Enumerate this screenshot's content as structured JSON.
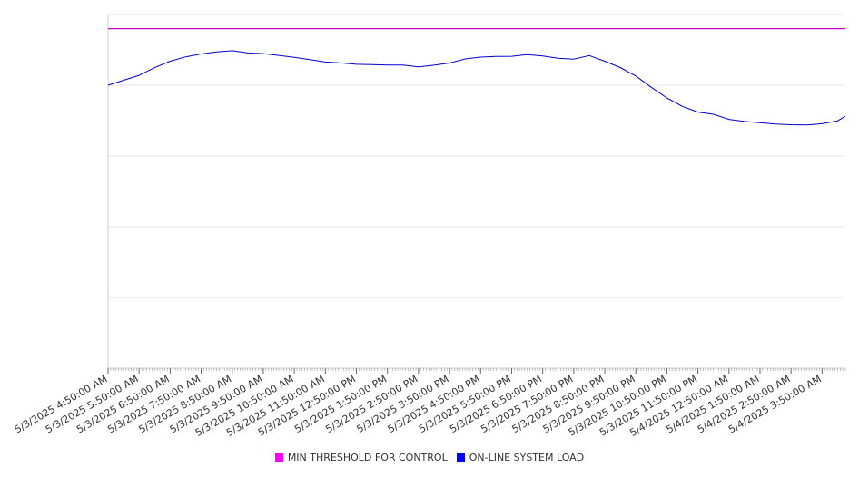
{
  "chart_data": {
    "type": "line",
    "title": "",
    "xlabel": "",
    "ylabel": "",
    "ylim": [
      0,
      5
    ],
    "grid": true,
    "legend_position": "bottom",
    "x_start": "5/3/2025 4:50:00 AM",
    "x_end": "5/4/2025 4:35:00 AM",
    "tick_labels": [
      "5/3/2025 4:50:00 AM",
      "5/3/2025 5:50:00 AM",
      "5/3/2025 6:50:00 AM",
      "5/3/2025 7:50:00 AM",
      "5/3/2025 8:50:00 AM",
      "5/3/2025 9:50:00 AM",
      "5/3/2025 10:50:00 AM",
      "5/3/2025 11:50:00 AM",
      "5/3/2025 12:50:00 PM",
      "5/3/2025 1:50:00 PM",
      "5/3/2025 2:50:00 PM",
      "5/3/2025 3:50:00 PM",
      "5/3/2025 4:50:00 PM",
      "5/3/2025 5:50:00 PM",
      "5/3/2025 6:50:00 PM",
      "5/3/2025 7:50:00 PM",
      "5/3/2025 8:50:00 PM",
      "5/3/2025 9:50:00 PM",
      "5/3/2025 10:50:00 PM",
      "5/3/2025 11:50:00 PM",
      "5/4/2025 12:50:00 AM",
      "5/4/2025 1:50:00 AM",
      "5/4/2025 2:50:00 AM",
      "5/4/2025 3:50:00 AM"
    ],
    "x": [
      "5/3/2025 4:50:00 AM",
      "5/3/2025 5:20:00 AM",
      "5/3/2025 5:50:00 AM",
      "5/3/2025 6:20:00 AM",
      "5/3/2025 6:50:00 AM",
      "5/3/2025 7:20:00 AM",
      "5/3/2025 7:50:00 AM",
      "5/3/2025 8:20:00 AM",
      "5/3/2025 8:50:00 AM",
      "5/3/2025 9:20:00 AM",
      "5/3/2025 9:50:00 AM",
      "5/3/2025 10:20:00 AM",
      "5/3/2025 10:50:00 AM",
      "5/3/2025 11:20:00 AM",
      "5/3/2025 11:50:00 AM",
      "5/3/2025 12:20:00 PM",
      "5/3/2025 12:50:00 PM",
      "5/3/2025 1:20:00 PM",
      "5/3/2025 1:50:00 PM",
      "5/3/2025 2:20:00 PM",
      "5/3/2025 2:50:00 PM",
      "5/3/2025 3:20:00 PM",
      "5/3/2025 3:50:00 PM",
      "5/3/2025 4:20:00 PM",
      "5/3/2025 4:50:00 PM",
      "5/3/2025 5:20:00 PM",
      "5/3/2025 5:50:00 PM",
      "5/3/2025 6:20:00 PM",
      "5/3/2025 6:50:00 PM",
      "5/3/2025 7:20:00 PM",
      "5/3/2025 7:50:00 PM",
      "5/3/2025 8:20:00 PM",
      "5/3/2025 8:50:00 PM",
      "5/3/2025 9:20:00 PM",
      "5/3/2025 9:50:00 PM",
      "5/3/2025 10:20:00 PM",
      "5/3/2025 10:50:00 PM",
      "5/3/2025 11:20:00 PM",
      "5/3/2025 11:50:00 PM",
      "5/4/2025 12:20:00 AM",
      "5/4/2025 12:50:00 AM",
      "5/4/2025 1:20:00 AM",
      "5/4/2025 1:50:00 AM",
      "5/4/2025 2:20:00 AM",
      "5/4/2025 2:50:00 AM",
      "5/4/2025 3:20:00 AM",
      "5/4/2025 3:50:00 AM",
      "5/4/2025 4:20:00 AM",
      "5/4/2025 4:35:00 AM"
    ],
    "series": [
      {
        "name": "MIN THRESHOLD FOR CONTROL",
        "color": "#cc00cc",
        "values": [
          4.8,
          4.8,
          4.8,
          4.8,
          4.8,
          4.8,
          4.8,
          4.8,
          4.8,
          4.8,
          4.8,
          4.8,
          4.8,
          4.8,
          4.8,
          4.8,
          4.8,
          4.8,
          4.8,
          4.8,
          4.8,
          4.8,
          4.8,
          4.8,
          4.8,
          4.8,
          4.8,
          4.8,
          4.8,
          4.8,
          4.8,
          4.8,
          4.8,
          4.8,
          4.8,
          4.8,
          4.8,
          4.8,
          4.8,
          4.8,
          4.8,
          4.8,
          4.8,
          4.8,
          4.8,
          4.8,
          4.8,
          4.8,
          4.8
        ]
      },
      {
        "name": "ON-LINE SYSTEM LOAD",
        "color": "#0000cc",
        "values": [
          4.0,
          4.08,
          4.15,
          4.25,
          4.33,
          4.39,
          4.44,
          4.48,
          4.5,
          4.46,
          4.44,
          4.41,
          4.39,
          4.37,
          4.34,
          4.32,
          4.29,
          4.28,
          4.28,
          4.29,
          4.27,
          4.29,
          4.31,
          4.36,
          4.39,
          4.41,
          4.42,
          4.44,
          4.41,
          4.37,
          4.36,
          4.42,
          4.35,
          4.26,
          4.13,
          3.96,
          3.81,
          3.7,
          3.63,
          3.6,
          3.52,
          3.48,
          3.46,
          3.45,
          3.45,
          3.45,
          3.46,
          3.49,
          3.55
        ]
      }
    ]
  }
}
